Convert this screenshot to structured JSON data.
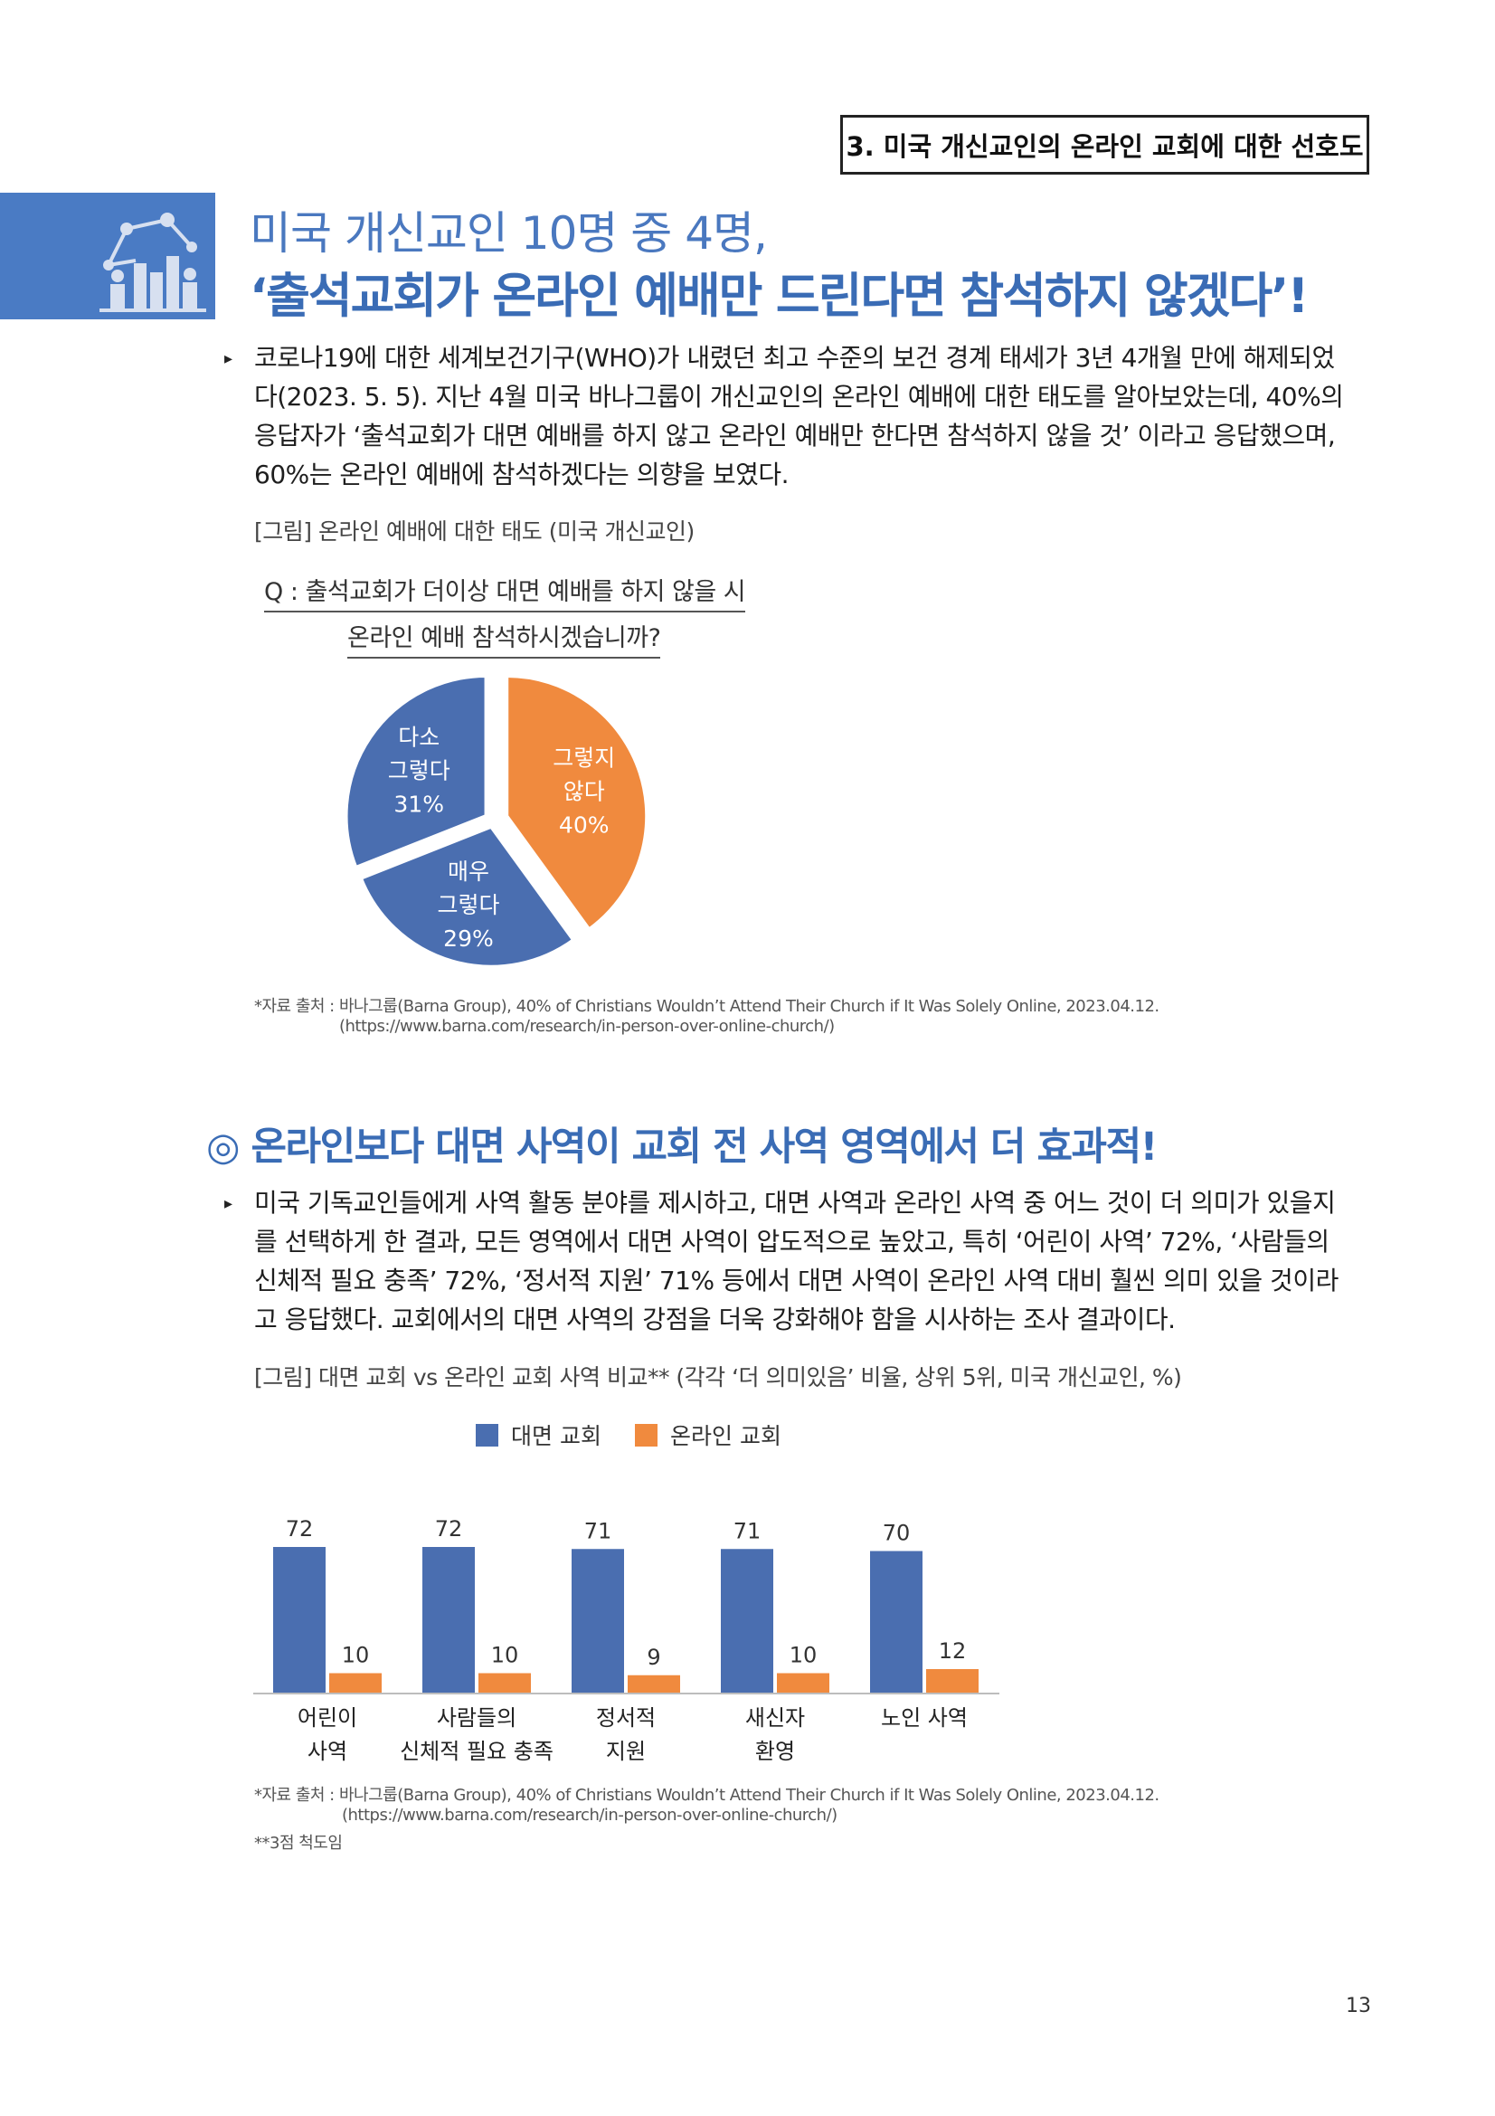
{
  "section_label": "3. 미국 개신교인의 온라인 교회에 대한 선호도",
  "icon": "chart-people-icon",
  "colors": {
    "accent": "#4a7bc4",
    "blue": "#4a6eb0",
    "orange": "#f08a3e"
  },
  "title_line1": "미국 개신교인 10명 중 4명,",
  "title_line2": "‘출석교회가 온라인 예배만 드린다면 참석하지 않겠다’!",
  "para1_lines": [
    "코로나19에 대한 세계보건기구(WHO)가 내렸던 최고 수준의 보건 경계 태세가 3년 4개월 만에 해제되었",
    "다(2023. 5. 5). 지난 4월 미국 바나그룹이 개신교인의 온라인 예배에 대한 태도를 알아보았는데, 40%의",
    "응답자가 ‘출석교회가 대면 예배를 하지 않고 온라인 예배만 한다면 참석하지 않을 것’ 이라고 응답했으며,",
    "60%는 온라인 예배에 참석하겠다는 의향을 보였다."
  ],
  "fig1_caption": "[그림] 온라인 예배에 대한 태도 (미국 개신교인)",
  "fig1_question": [
    "Q : 출석교회가 더이상 대면 예배를 하지 않을 시",
    "온라인 예배 참석하시겠습니까?"
  ],
  "source1": [
    "*자료 출처 : 바나그룹(Barna Group), 40% of Christians Wouldn’t Attend Their Church if It Was Solely Online, 2023.04.12.",
    "(https://www.barna.com/research/in-person-over-online-church/)"
  ],
  "section2_title": "◎ 온라인보다 대면 사역이 교회 전 사역 영역에서 더 효과적!",
  "para2_lines": [
    "미국 기독교인들에게 사역 활동 분야를 제시하고, 대면 사역과 온라인 사역 중 어느 것이 더 의미가 있을지",
    "를 선택하게 한 결과, 모든 영역에서 대면 사역이 압도적으로 높았고, 특히 ‘어린이 사역’ 72%, ‘사람들의",
    "신체적 필요 충족’ 72%, ‘정서적 지원’ 71% 등에서 대면 사역이 온라인 사역 대비 훨씬 의미 있을 것이라",
    "고 응답했다. 교회에서의 대면 사역의 강점을 더욱 강화해야 함을 시사하는 조사 결과이다."
  ],
  "fig2_caption": "[그림] 대면 교회 vs 온라인 교회 사역 비교** (각각 ‘더 의미있음’ 비율, 상위 5위, 미국 개신교인, %)",
  "source2": [
    "*자료 출처 : 바나그룹(Barna Group), 40% of Christians Wouldn’t Attend Their Church if It Was Solely Online, 2023.04.12.",
    "(https://www.barna.com/research/in-person-over-online-church/)",
    "**3점 척도임"
  ],
  "page_number": "13",
  "chart_data": [
    {
      "type": "pie",
      "title": "",
      "slices": [
        {
          "label": [
            "그렇지",
            "않다"
          ],
          "value": 40,
          "display": "40%",
          "color": "#f08a3e"
        },
        {
          "label": [
            "매우",
            "그렇다"
          ],
          "value": 29,
          "display": "29%",
          "color": "#4a6eb0"
        },
        {
          "label": [
            "다소",
            "그렇다"
          ],
          "value": 31,
          "display": "31%",
          "color": "#4a6eb0"
        }
      ]
    },
    {
      "type": "bar",
      "title": "",
      "categories": [
        [
          "어린이",
          "사역"
        ],
        [
          "사람들의",
          "신체적 필요 충족"
        ],
        [
          "정서적",
          "지원"
        ],
        [
          "새신자",
          "환영"
        ],
        [
          "노인 사역"
        ]
      ],
      "series": [
        {
          "name": "대면 교회",
          "values": [
            72,
            72,
            71,
            71,
            70
          ],
          "color": "#4a6eb0"
        },
        {
          "name": "온라인 교회",
          "values": [
            10,
            10,
            9,
            10,
            12
          ],
          "color": "#f08a3e"
        }
      ],
      "legend": "top"
    }
  ]
}
